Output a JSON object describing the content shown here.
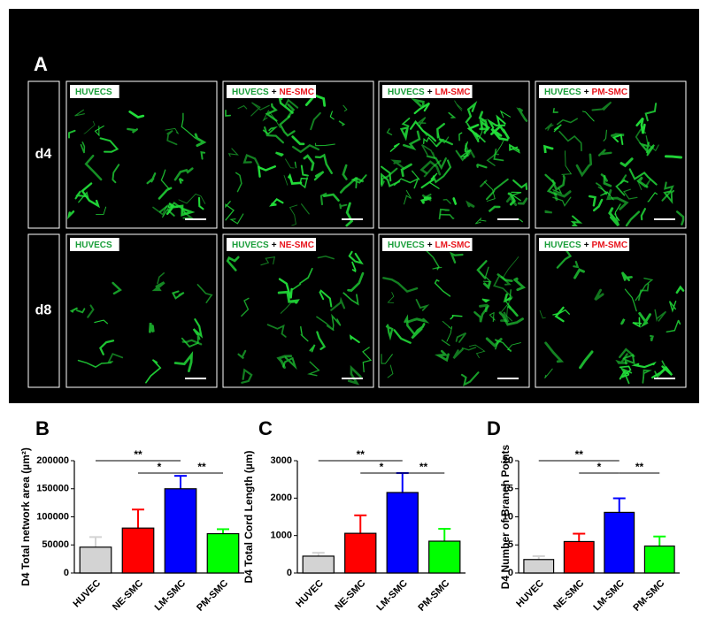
{
  "panel_a": {
    "label": "A",
    "rows": [
      "d4",
      "d8"
    ],
    "columns": [
      [
        {
          "text": "HUVECS",
          "color": "#1a9e3a"
        }
      ],
      [
        {
          "text": "HUVECS",
          "color": "#1a9e3a"
        },
        {
          "text": "+",
          "color": "#000000"
        },
        {
          "text": "NE-SMC",
          "color": "#e8141c"
        }
      ],
      [
        {
          "text": "HUVECS",
          "color": "#1a9e3a"
        },
        {
          "text": "+",
          "color": "#000000"
        },
        {
          "text": "LM-SMC",
          "color": "#e8141c"
        }
      ],
      [
        {
          "text": "HUVECS",
          "color": "#1a9e3a"
        },
        {
          "text": "+",
          "color": "#000000"
        },
        {
          "text": "PM-SMC",
          "color": "#e8141c"
        }
      ]
    ]
  },
  "chart_data": [
    {
      "type": "bar",
      "label": "B",
      "y_label": "D4 Total network area (µm²)",
      "categories": [
        "HUVEC",
        "NE-SMC",
        "LM-SMC",
        "PM-SMC"
      ],
      "colors": [
        "#d3d3d3",
        "#ff0000",
        "#0000ff",
        "#00ff00"
      ],
      "values": [
        46000,
        80000,
        150000,
        70000
      ],
      "errors": [
        18000,
        33000,
        23000,
        8000
      ],
      "ylim": [
        0,
        200000
      ],
      "yticks": [
        0,
        50000,
        100000,
        150000,
        200000
      ],
      "annotations": [
        {
          "text": "**",
          "from": 0,
          "to": 2
        },
        {
          "text": "*",
          "from": 1,
          "to": 2
        },
        {
          "text": "**",
          "from": 2,
          "to": 3
        }
      ]
    },
    {
      "type": "bar",
      "label": "C",
      "y_label": "D4 Total Cord Length (µm)",
      "categories": [
        "HUVEC",
        "NE-SMC",
        "LM-SMC",
        "PM-SMC"
      ],
      "colors": [
        "#d3d3d3",
        "#ff0000",
        "#0000ff",
        "#00ff00"
      ],
      "values": [
        450,
        1060,
        2150,
        850
      ],
      "errors": [
        90,
        480,
        520,
        330
      ],
      "ylim": [
        0,
        3000
      ],
      "yticks": [
        0,
        1000,
        2000,
        3000
      ],
      "annotations": [
        {
          "text": "**",
          "from": 0,
          "to": 2
        },
        {
          "text": "*",
          "from": 1,
          "to": 2
        },
        {
          "text": "**",
          "from": 2,
          "to": 3
        }
      ]
    },
    {
      "type": "bar",
      "label": "D",
      "y_label": "D4 Number of Branch Points",
      "categories": [
        "HUVEC",
        "NE-SMC",
        "LM-SMC",
        "PM-SMC"
      ],
      "colors": [
        "#d3d3d3",
        "#ff0000",
        "#0000ff",
        "#00ff00"
      ],
      "values": [
        2.4,
        5.6,
        10.8,
        4.8
      ],
      "errors": [
        0.6,
        1.4,
        2.5,
        1.7
      ],
      "ylim": [
        0,
        20
      ],
      "yticks": [
        0,
        5,
        10,
        15,
        20
      ],
      "annotations": [
        {
          "text": "**",
          "from": 0,
          "to": 2
        },
        {
          "text": "*",
          "from": 1,
          "to": 2
        },
        {
          "text": "**",
          "from": 2,
          "to": 3
        }
      ]
    }
  ]
}
